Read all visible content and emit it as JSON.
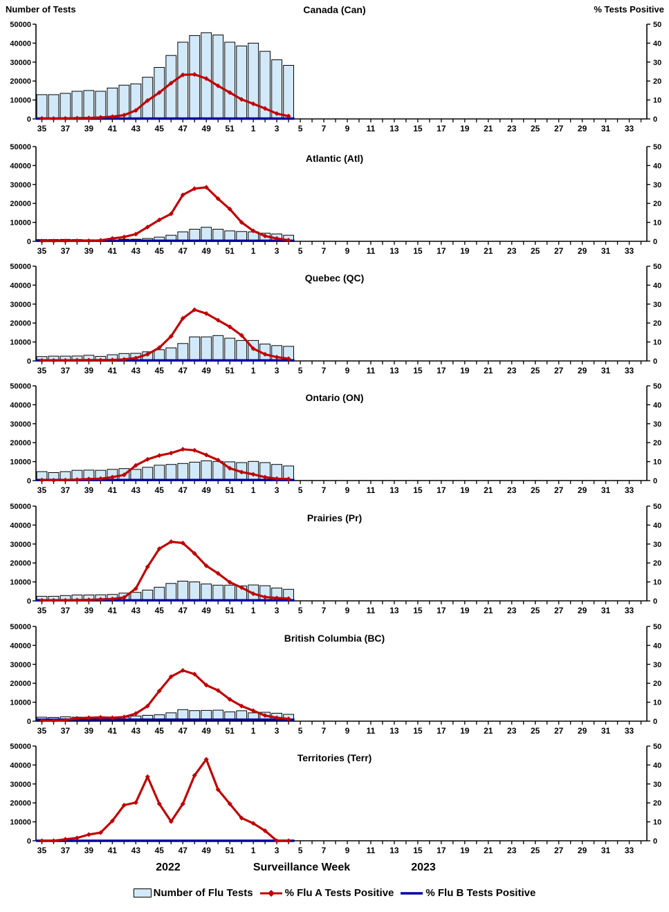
{
  "page": {
    "left_axis_title": "Number of Tests",
    "right_axis_title": "% Tests Positive",
    "footer": {
      "year_left": "2022",
      "axis_title": "Surveillance Week",
      "year_right": "2023"
    },
    "legend": [
      {
        "label": "Number of Flu Tests"
      },
      {
        "label": "% Flu A Tests Positive"
      },
      {
        "label": "% Flu B Tests Positive"
      }
    ]
  },
  "colors": {
    "bar_fill": "#D2E9F9",
    "bar_stroke": "#000000",
    "flu_a_line": "#C00000",
    "flu_b_line": "#0000A0",
    "axis": "#000000",
    "text": "#000000",
    "background": "#FFFFFF"
  },
  "chart_data": {
    "type": "combo-bar-line-small-multiples",
    "x_weeks": [
      35,
      36,
      37,
      38,
      39,
      40,
      41,
      42,
      43,
      44,
      45,
      46,
      47,
      48,
      49,
      50,
      51,
      52,
      1,
      2,
      3,
      4,
      5,
      6,
      7,
      8,
      9,
      10,
      11,
      12,
      13,
      14,
      15,
      16,
      17,
      18,
      19,
      20,
      21,
      22,
      23,
      24,
      25,
      26,
      27,
      28,
      29,
      30,
      31,
      32,
      33,
      34
    ],
    "x_tick_labels": [
      "35",
      "37",
      "39",
      "41",
      "43",
      "45",
      "47",
      "49",
      "51",
      "1",
      "3",
      "5",
      "7",
      "9",
      "11",
      "13",
      "15",
      "17",
      "19",
      "21",
      "23",
      "25",
      "27",
      "29",
      "31",
      "33"
    ],
    "data_weeks": [
      35,
      36,
      37,
      38,
      39,
      40,
      41,
      42,
      43,
      44,
      45,
      46,
      47,
      48,
      49,
      50,
      51,
      52,
      1,
      2,
      3,
      4
    ],
    "y_left": {
      "title": "Number of Tests",
      "ticks": [
        0,
        10000,
        20000,
        30000,
        40000,
        50000
      ],
      "max": 50000
    },
    "y_right": {
      "title": "% Tests Positive",
      "ticks": [
        0,
        10,
        20,
        30,
        40,
        50
      ],
      "max": 50
    },
    "legend_series": [
      "Number of Flu Tests",
      "% Flu A Tests Positive",
      "% Flu B Tests Positive"
    ],
    "panels": [
      {
        "title": "Canada (Can)",
        "tests": [
          12800,
          12800,
          13500,
          14600,
          15000,
          14600,
          16300,
          17800,
          18500,
          22000,
          27200,
          33500,
          40500,
          44000,
          45500,
          44300,
          40500,
          38500,
          40000,
          35700,
          31200,
          28300
        ],
        "flu_a_pct": [
          0.3,
          0.2,
          0.3,
          0.4,
          0.5,
          0.8,
          1.2,
          2.0,
          4.5,
          9.7,
          13.9,
          18.9,
          23.3,
          23.5,
          21.3,
          17.5,
          13.9,
          10.3,
          8.0,
          5.5,
          2.8,
          1.5
        ],
        "flu_b_pct_flat": 0.2
      },
      {
        "title": "Atlantic (Atl)",
        "tests": [
          900,
          900,
          1000,
          900,
          800,
          600,
          700,
          1100,
          1100,
          1500,
          2200,
          3200,
          5000,
          6400,
          7400,
          6400,
          5500,
          5200,
          5000,
          4300,
          3900,
          3200
        ],
        "flu_a_pct": [
          0.2,
          0.2,
          0.2,
          0.3,
          0.3,
          0.5,
          1.5,
          2.3,
          3.8,
          7.5,
          11.3,
          14.5,
          24.5,
          27.8,
          28.5,
          22.5,
          17.0,
          10.0,
          5.5,
          2.8,
          1.5,
          0.6
        ],
        "flu_b_pct_flat": 0.3
      },
      {
        "title": "Quebec (QC)",
        "tests": [
          2300,
          2500,
          2500,
          2600,
          3000,
          2400,
          3300,
          3900,
          4000,
          4800,
          5900,
          6900,
          9200,
          12700,
          12700,
          13400,
          12000,
          10800,
          10800,
          8900,
          8100,
          7700
        ],
        "flu_a_pct": [
          0.3,
          0.3,
          0.3,
          0.4,
          0.4,
          0.4,
          0.5,
          0.8,
          1.5,
          3.5,
          7.0,
          13.0,
          22.5,
          27.0,
          25.0,
          21.5,
          18.0,
          13.5,
          6.5,
          3.5,
          2.0,
          1.2
        ],
        "flu_b_pct_flat": 0.3
      },
      {
        "title": "Ontario (ON)",
        "tests": [
          4700,
          4200,
          4700,
          5400,
          5500,
          5400,
          5900,
          6300,
          5900,
          7000,
          8100,
          8500,
          9000,
          9700,
          10400,
          10100,
          9900,
          9500,
          10100,
          9500,
          8500,
          7700
        ],
        "flu_a_pct": [
          0.3,
          0.2,
          0.3,
          0.5,
          0.8,
          1.0,
          1.8,
          3.0,
          8.0,
          11.2,
          13.2,
          14.5,
          16.5,
          16.0,
          13.5,
          10.8,
          6.5,
          4.5,
          3.3,
          1.8,
          1.0,
          0.8
        ],
        "flu_b_pct_flat": 0.3
      },
      {
        "title": "Prairies (Pr)",
        "tests": [
          2400,
          2400,
          2800,
          3100,
          3100,
          3200,
          3400,
          4100,
          4500,
          5700,
          7200,
          9200,
          10400,
          10000,
          8900,
          8300,
          8300,
          7900,
          8400,
          8000,
          6800,
          6100
        ],
        "flu_a_pct": [
          0.3,
          0.3,
          0.3,
          0.4,
          0.5,
          0.8,
          1.0,
          1.8,
          6.5,
          18.0,
          27.5,
          31.2,
          30.5,
          25.0,
          18.5,
          14.5,
          9.8,
          7.0,
          3.8,
          2.0,
          1.5,
          1.2
        ],
        "flu_b_pct_flat": 0.3
      },
      {
        "title": "British Columbia (BC)",
        "tests": [
          2100,
          2000,
          2300,
          2100,
          2100,
          2100,
          1900,
          2100,
          2700,
          3100,
          3400,
          4400,
          6100,
          5600,
          5700,
          5800,
          4900,
          5500,
          4400,
          4700,
          4200,
          3600
        ],
        "flu_a_pct": [
          0.3,
          0.3,
          0.5,
          1.5,
          1.8,
          2.0,
          1.8,
          2.2,
          4.0,
          8.0,
          16.0,
          23.5,
          26.8,
          24.8,
          19.0,
          16.2,
          11.5,
          8.0,
          5.5,
          3.0,
          1.8,
          1.2
        ],
        "flu_b_pct_flat": 0.8
      },
      {
        "title": "Territories (Terr)",
        "tests": [
          0,
          0,
          0,
          0,
          0,
          0,
          0,
          0,
          0,
          0,
          0,
          0,
          0,
          0,
          0,
          0,
          0,
          0,
          0,
          0,
          0,
          0
        ],
        "flu_a_pct": [
          0.0,
          0.0,
          0.8,
          1.5,
          3.3,
          4.3,
          10.5,
          18.8,
          20.2,
          33.8,
          19.5,
          10.2,
          19.5,
          34.5,
          43.0,
          27.0,
          19.5,
          12.0,
          9.2,
          5.3,
          0.0,
          0.0
        ],
        "flu_b_pct_flat": 0.0
      }
    ]
  }
}
